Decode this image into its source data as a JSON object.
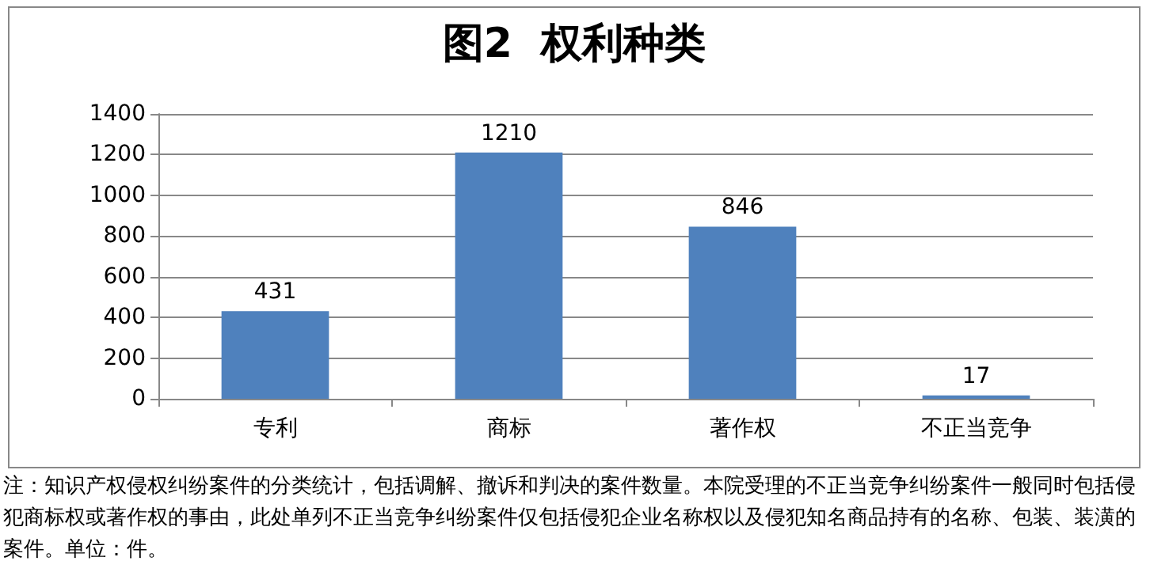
{
  "chart_data": {
    "type": "bar",
    "title": "图2  权利种类",
    "categories": [
      "专利",
      "商标",
      "著作权",
      "不正当竞争"
    ],
    "values": [
      431,
      1210,
      846,
      17
    ],
    "color": "#4f81bd",
    "ylim": [
      0,
      1400
    ],
    "yticks": [
      0,
      200,
      400,
      600,
      800,
      1000,
      1200,
      1400
    ],
    "grid": "y",
    "data_labels": true,
    "annotations": [
      "注：知识产权侵权纠纷案件的分类统计，包括调解、撤诉和判决的案件数量。本院受理的不正当竞争纠纷案件一般同时包括侵犯商标权或著作权的事由，此处单列不正当竞争纠纷案件仅包括侵犯企业名称权以及侵犯知名商品持有的名称、包装、装潢的案件。单位：件。"
    ]
  }
}
